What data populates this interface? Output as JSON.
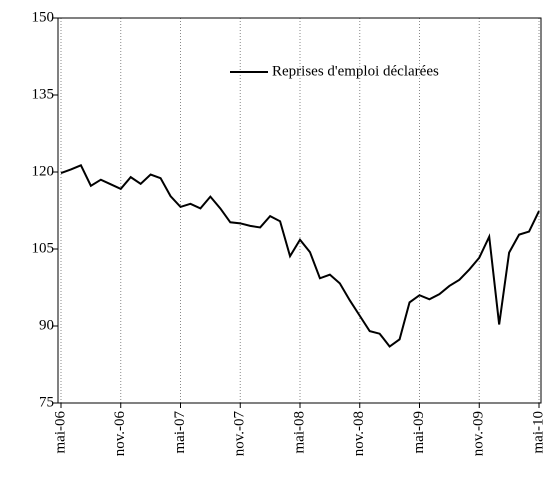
{
  "chart_data": {
    "type": "line",
    "categories": [
      "mai-06",
      null,
      null,
      null,
      null,
      null,
      "nov.-06",
      null,
      null,
      null,
      null,
      null,
      "mai-07",
      null,
      null,
      null,
      null,
      null,
      "nov.-07",
      null,
      null,
      null,
      null,
      null,
      "mai-08",
      null,
      null,
      null,
      null,
      null,
      "nov.-08",
      null,
      null,
      null,
      null,
      null,
      "mai-09",
      null,
      null,
      null,
      null,
      null,
      "nov.-09",
      null,
      null,
      null,
      null,
      null,
      "mai-10"
    ],
    "series": [
      {
        "name": "Reprises d'emploi déclarées",
        "color": "#000000",
        "values": [
          119.8,
          120.5,
          121.3,
          117.3,
          118.5,
          117.6,
          116.7,
          119.0,
          117.7,
          119.5,
          118.8,
          115.3,
          113.2,
          113.8,
          112.9,
          115.2,
          112.9,
          110.2,
          110.0,
          109.5,
          109.2,
          111.4,
          110.4,
          103.6,
          106.8,
          104.4,
          99.3,
          100.0,
          98.3,
          95.0,
          92.0,
          89.0,
          88.5,
          86.0,
          87.4,
          94.6,
          96.0,
          95.2,
          96.2,
          97.8,
          99.0,
          101.0,
          103.3,
          107.4,
          90.3,
          104.3,
          107.8,
          108.4,
          112.4
        ]
      }
    ],
    "ylim": [
      75,
      150
    ],
    "yticks": [
      75,
      90,
      105,
      120,
      135,
      150
    ],
    "grid": true,
    "legend": "upper right"
  }
}
